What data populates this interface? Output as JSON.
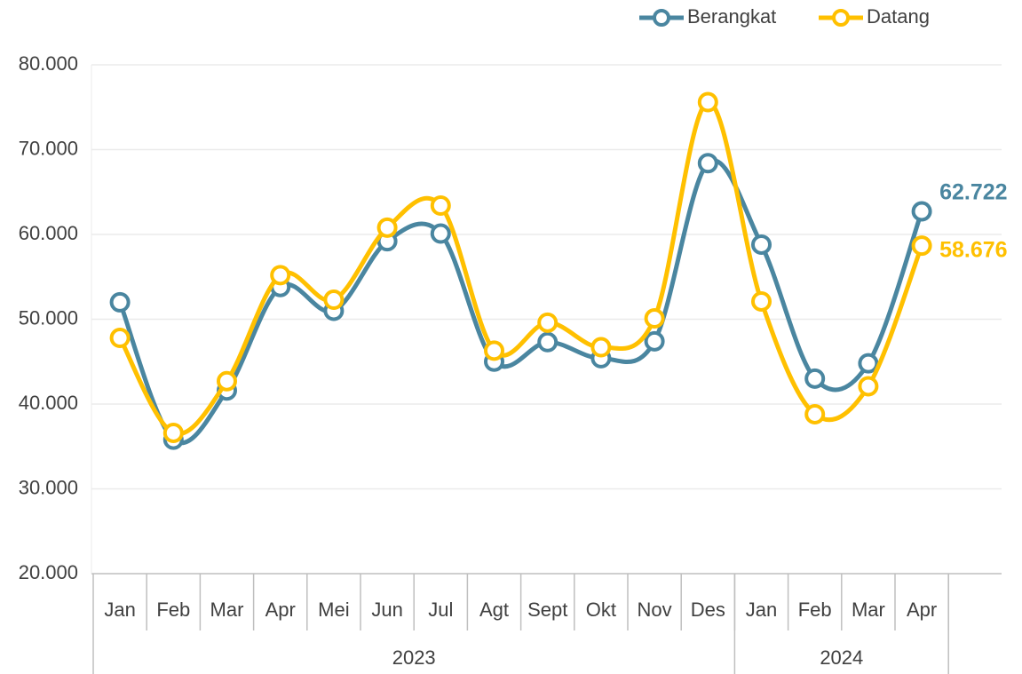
{
  "chart_data": {
    "type": "line",
    "categories": [
      "Jan",
      "Feb",
      "Mar",
      "Apr",
      "Mei",
      "Jun",
      "Jul",
      "Agt",
      "Sept",
      "Okt",
      "Nov",
      "Des",
      "Jan",
      "Feb",
      "Mar",
      "Apr"
    ],
    "groups": [
      {
        "name": "2023",
        "count": 12
      },
      {
        "name": "2024",
        "count": 4
      }
    ],
    "series": [
      {
        "name": "Berangkat",
        "color": "#4a86a0",
        "values": [
          52000,
          35800,
          41600,
          53800,
          51000,
          59200,
          60100,
          45000,
          47300,
          45400,
          47400,
          68400,
          58800,
          43000,
          44800,
          62722
        ],
        "value_labels": [
          null,
          null,
          null,
          null,
          null,
          null,
          null,
          null,
          null,
          null,
          null,
          null,
          null,
          null,
          null,
          "62.722"
        ]
      },
      {
        "name": "Datang",
        "color": "#ffc000",
        "values": [
          47800,
          36600,
          42700,
          55200,
          52300,
          60800,
          63400,
          46300,
          49600,
          46700,
          50100,
          75600,
          52100,
          38800,
          42100,
          58676
        ],
        "value_labels": [
          null,
          null,
          null,
          null,
          null,
          null,
          null,
          null,
          null,
          null,
          null,
          null,
          null,
          null,
          null,
          "58.676"
        ]
      }
    ],
    "ylim": [
      20000,
      80000
    ],
    "yticks": [
      {
        "value": 20000,
        "label": "20.000"
      },
      {
        "value": 30000,
        "label": "30.000"
      },
      {
        "value": 40000,
        "label": "40.000"
      },
      {
        "value": 50000,
        "label": "50.000"
      },
      {
        "value": 60000,
        "label": "60.000"
      },
      {
        "value": 70000,
        "label": "70.000"
      },
      {
        "value": 80000,
        "label": "80.000"
      }
    ],
    "grid": true,
    "smooth": true,
    "legend": "top-right"
  }
}
